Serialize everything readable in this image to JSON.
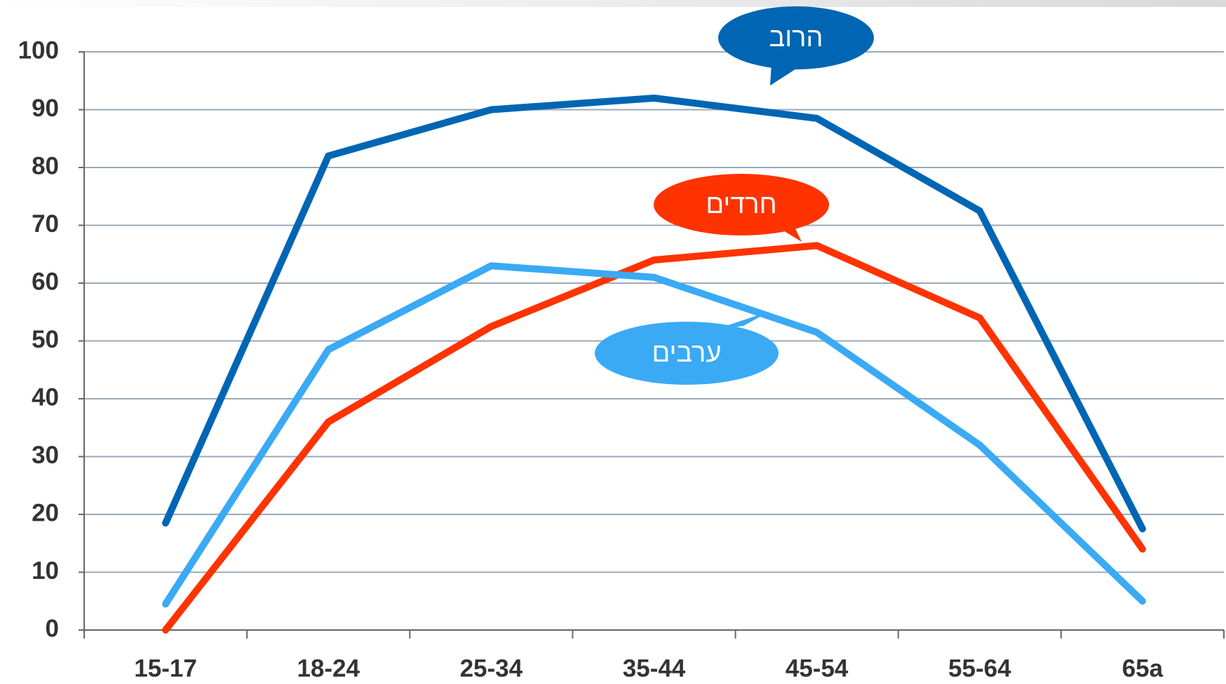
{
  "chart_data": {
    "type": "line",
    "categories": [
      "15-17",
      "18-24",
      "25-34",
      "35-44",
      "45-54",
      "55-64",
      "65a"
    ],
    "series": [
      {
        "name": "הרוב",
        "color": "#0066b3",
        "values": [
          18.5,
          82,
          90,
          92,
          88.5,
          72.5,
          17.5
        ]
      },
      {
        "name": "חרדים",
        "color": "#ff3300",
        "values": [
          0,
          36,
          52.5,
          64,
          66.5,
          54,
          14
        ]
      },
      {
        "name": "ערבים",
        "color": "#3aaaf5",
        "values": [
          4.5,
          48.5,
          63,
          61,
          51.5,
          32,
          5
        ]
      }
    ],
    "ylim": [
      0,
      100
    ],
    "yticks": [
      0,
      10,
      20,
      30,
      40,
      50,
      60,
      70,
      80,
      90,
      100
    ],
    "grid": true
  }
}
